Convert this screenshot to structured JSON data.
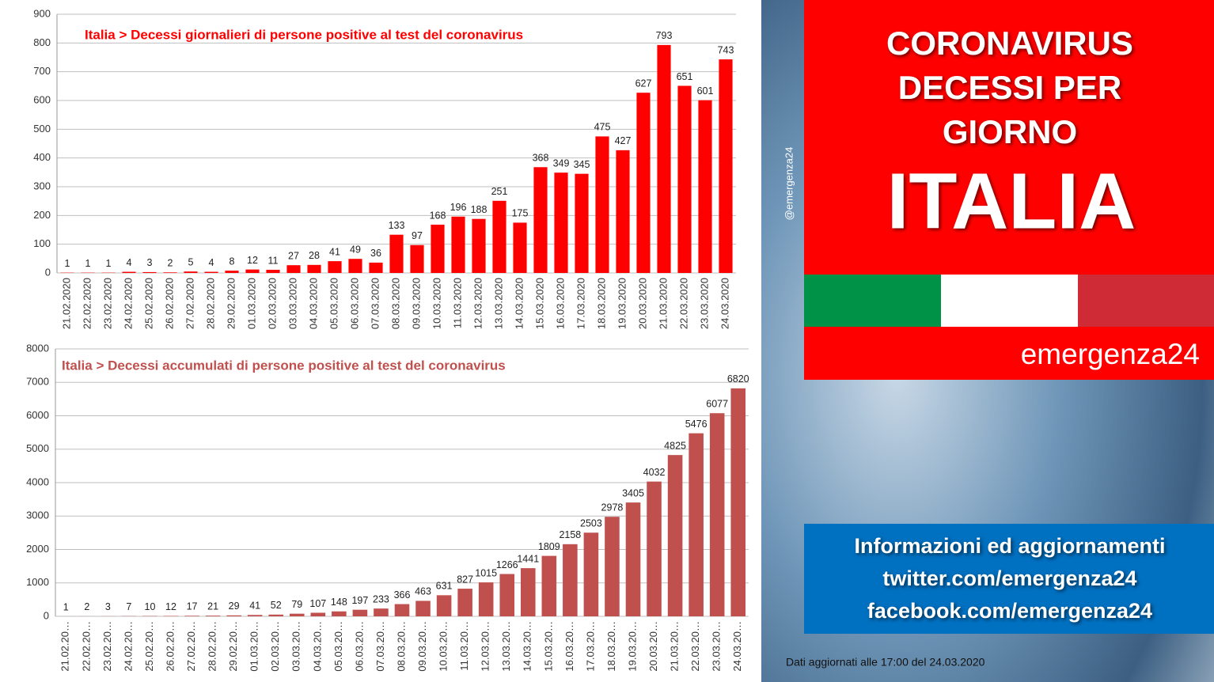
{
  "chart_data": [
    {
      "type": "bar",
      "title": "Italia > Decessi giornalieri di persone positive al test del coronavirus",
      "color": "#ff0000",
      "categories": [
        "21.02.2020",
        "22.02.2020",
        "23.02.2020",
        "24.02.2020",
        "25.02.2020",
        "26.02.2020",
        "27.02.2020",
        "28.02.2020",
        "29.02.2020",
        "01.03.2020",
        "02.03.2020",
        "03.03.2020",
        "04.03.2020",
        "05.03.2020",
        "06.03.2020",
        "07.03.2020",
        "08.03.2020",
        "09.03.2020",
        "10.03.2020",
        "11.03.2020",
        "12.03.2020",
        "13.03.2020",
        "14.03.2020",
        "15.03.2020",
        "16.03.2020",
        "17.03.2020",
        "18.03.2020",
        "19.03.2020",
        "20.03.2020",
        "21.03.2020",
        "22.03.2020",
        "23.03.2020",
        "24.03.2020"
      ],
      "values": [
        1,
        1,
        1,
        4,
        3,
        2,
        5,
        4,
        8,
        12,
        11,
        27,
        28,
        41,
        49,
        36,
        133,
        97,
        168,
        196,
        188,
        251,
        175,
        368,
        349,
        345,
        475,
        427,
        627,
        793,
        651,
        601,
        743
      ],
      "ylim": [
        0,
        900
      ],
      "yticks": [
        0,
        100,
        200,
        300,
        400,
        500,
        600,
        700,
        800,
        900
      ],
      "grid": true
    },
    {
      "type": "bar",
      "title": "Italia > Decessi accumulati di persone positive al test del coronavirus",
      "color": "#c0504d",
      "categories": [
        "21.02.20…",
        "22.02.20…",
        "23.02.20…",
        "24.02.20…",
        "25.02.20…",
        "26.02.20…",
        "27.02.20…",
        "28.02.20…",
        "29.02.20…",
        "01.03.20…",
        "02.03.20…",
        "03.03.20…",
        "04.03.20…",
        "05.03.20…",
        "06.03.20…",
        "07.03.20…",
        "08.03.20…",
        "09.03.20…",
        "10.03.20…",
        "11.03.20…",
        "12.03.20…",
        "13.03.20…",
        "14.03.20…",
        "15.03.20…",
        "16.03.20…",
        "17.03.20…",
        "18.03.20…",
        "19.03.20…",
        "20.03.20…",
        "21.03.20…",
        "22.03.20…",
        "23.03.20…",
        "24.03.20…"
      ],
      "values": [
        1,
        2,
        3,
        7,
        10,
        12,
        17,
        21,
        29,
        41,
        52,
        79,
        107,
        148,
        197,
        233,
        366,
        463,
        631,
        827,
        1015,
        1266,
        1441,
        1809,
        2158,
        2503,
        2978,
        3405,
        4032,
        4825,
        5476,
        6077,
        6820
      ],
      "ylim": [
        0,
        8000
      ],
      "yticks": [
        0,
        1000,
        2000,
        3000,
        4000,
        5000,
        6000,
        7000,
        8000
      ],
      "grid": true
    }
  ],
  "panel": {
    "title_lines": [
      "CORONAVIRUS",
      "DECESSI PER",
      "GIORNO"
    ],
    "country": "ITALIA",
    "brand": "emergenza24",
    "handle": "@emergenza24",
    "info_lines": [
      "Informazioni ed aggiornamenti",
      "twitter.com/emergenza24",
      "facebook.com/emergenza24"
    ],
    "footer": "Dati aggiornati alle 17:00 del 24.03.2020"
  }
}
